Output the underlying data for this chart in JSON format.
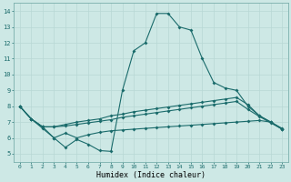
{
  "xlabel": "Humidex (Indice chaleur)",
  "background_color": "#cde8e5",
  "grid_color": "#b8d8d5",
  "line_color": "#1a6b6b",
  "xlim": [
    -0.5,
    23.5
  ],
  "ylim": [
    4.5,
    14.5
  ],
  "xticks": [
    0,
    1,
    2,
    3,
    4,
    5,
    6,
    7,
    8,
    9,
    10,
    11,
    12,
    13,
    14,
    15,
    16,
    17,
    18,
    19,
    20,
    21,
    22,
    23
  ],
  "yticks": [
    5,
    6,
    7,
    8,
    9,
    10,
    11,
    12,
    13,
    14
  ],
  "series0": [
    8.0,
    7.2,
    6.6,
    6.0,
    5.4,
    5.9,
    5.6,
    5.2,
    5.15,
    9.0,
    11.5,
    12.0,
    13.85,
    13.85,
    13.0,
    12.8,
    11.0,
    9.5,
    9.15,
    9.0,
    8.0,
    7.4,
    7.0,
    6.55
  ],
  "series1": [
    8.0,
    7.2,
    6.7,
    6.7,
    6.85,
    7.0,
    7.1,
    7.2,
    7.4,
    7.5,
    7.65,
    7.75,
    7.85,
    7.95,
    8.05,
    8.15,
    8.25,
    8.35,
    8.45,
    8.55,
    8.1,
    7.4,
    7.0,
    6.6
  ],
  "series2": [
    8.0,
    7.2,
    6.7,
    6.7,
    6.75,
    6.85,
    6.95,
    7.05,
    7.15,
    7.3,
    7.4,
    7.5,
    7.6,
    7.7,
    7.8,
    7.9,
    8.0,
    8.1,
    8.2,
    8.3,
    7.8,
    7.35,
    6.95,
    6.55
  ],
  "series3": [
    8.0,
    7.2,
    6.7,
    6.0,
    6.3,
    6.0,
    6.2,
    6.35,
    6.45,
    6.5,
    6.55,
    6.6,
    6.65,
    6.7,
    6.75,
    6.8,
    6.85,
    6.9,
    6.95,
    7.0,
    7.05,
    7.1,
    7.0,
    6.55
  ]
}
